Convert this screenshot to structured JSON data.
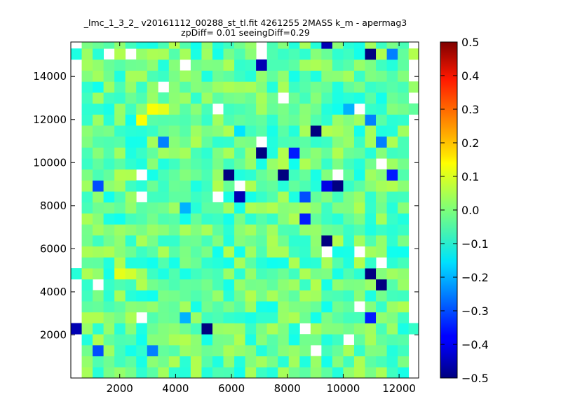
{
  "chart_data": {
    "type": "heatmap",
    "title_lines": [
      "_lmc_1_3_2_ v20161112_00288_st_tl.fit 4261255 2MASS k_m - apermag3",
      "zpDiff= 0.01 seeingDiff=0.29"
    ],
    "colormap": "jet",
    "xlim": [
      250,
      12700
    ],
    "ylim": [
      0,
      15600
    ],
    "xticks": [
      2000,
      4000,
      6000,
      8000,
      10000,
      12000
    ],
    "yticks": [
      2000,
      4000,
      6000,
      8000,
      10000,
      12000,
      14000
    ],
    "bin_width": 390,
    "bin_height": 510,
    "colorbar": {
      "min": -0.5,
      "max": 0.5,
      "ticks": [
        0.5,
        0.4,
        0.3,
        0.2,
        0.1,
        0.0,
        -0.1,
        -0.2,
        -0.3,
        -0.4,
        -0.5
      ],
      "tick_labels": [
        "0.5",
        "0.4",
        "0.3",
        "0.2",
        "0.1",
        "0.0",
        "−0.1",
        "−0.2",
        "−0.3",
        "−0.4",
        "−0.5"
      ]
    },
    "notable_cells": [
      {
        "x": 9300,
        "y": 15300,
        "value": -0.45
      },
      {
        "x": 10900,
        "y": 14800,
        "value": -0.5
      },
      {
        "x": 11600,
        "y": 14800,
        "value": -0.25
      },
      {
        "x": 7000,
        "y": 14300,
        "value": -0.45
      },
      {
        "x": 10100,
        "y": 12700,
        "value": -0.2
      },
      {
        "x": 10900,
        "y": 12200,
        "value": -0.25
      },
      {
        "x": 2800,
        "y": 12200,
        "value": 0.12
      },
      {
        "x": 3300,
        "y": 12700,
        "value": 0.12
      },
      {
        "x": 3700,
        "y": 12700,
        "value": 0.1
      },
      {
        "x": 9000,
        "y": 11700,
        "value": -0.5
      },
      {
        "x": 6200,
        "y": 11700,
        "value": -0.15
      },
      {
        "x": 3700,
        "y": 11200,
        "value": -0.25
      },
      {
        "x": 11400,
        "y": 11200,
        "value": -0.25
      },
      {
        "x": 7000,
        "y": 10700,
        "value": -0.5
      },
      {
        "x": 8200,
        "y": 10700,
        "value": -0.35
      },
      {
        "x": 5800,
        "y": 9600,
        "value": -0.5
      },
      {
        "x": 7800,
        "y": 9600,
        "value": -0.5
      },
      {
        "x": 11700,
        "y": 9600,
        "value": -0.35
      },
      {
        "x": 9700,
        "y": 9100,
        "value": -0.5
      },
      {
        "x": 9300,
        "y": 9100,
        "value": -0.4
      },
      {
        "x": 1100,
        "y": 9100,
        "value": -0.3
      },
      {
        "x": 6200,
        "y": 8600,
        "value": -0.45
      },
      {
        "x": 8600,
        "y": 8600,
        "value": -0.3
      },
      {
        "x": 4500,
        "y": 8100,
        "value": -0.2
      },
      {
        "x": 8600,
        "y": 7600,
        "value": -0.35
      },
      {
        "x": 9300,
        "y": 6600,
        "value": -0.5
      },
      {
        "x": 11000,
        "y": 4600,
        "value": -0.5
      },
      {
        "x": 11400,
        "y": 4100,
        "value": -0.5
      },
      {
        "x": 2000,
        "y": 4600,
        "value": 0.1
      },
      {
        "x": 2400,
        "y": 4600,
        "value": 0.08
      },
      {
        "x": 400,
        "y": 2100,
        "value": -0.45
      },
      {
        "x": 5000,
        "y": 2100,
        "value": -0.5
      },
      {
        "x": 4500,
        "y": 3000,
        "value": -0.2
      },
      {
        "x": 10900,
        "y": 2600,
        "value": -0.35
      },
      {
        "x": 1400,
        "y": 1500,
        "value": -0.3
      },
      {
        "x": 3300,
        "y": 1500,
        "value": -0.25
      }
    ]
  }
}
